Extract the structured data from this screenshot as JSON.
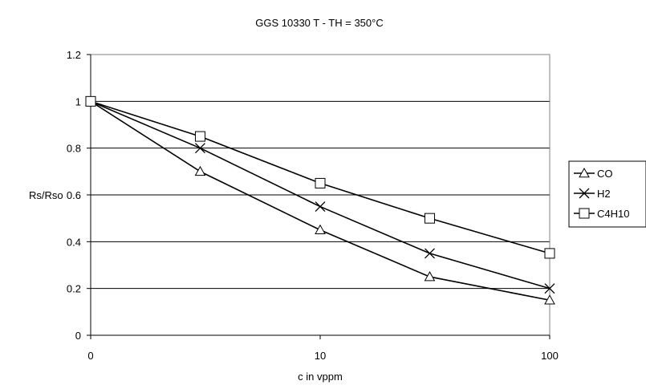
{
  "chart_data": {
    "type": "line",
    "title": "GGS 10330 T - TH = 350°C",
    "xlabel": "c in vppm",
    "ylabel": "Rs/Rso",
    "x_tick_labels": [
      "0",
      "10",
      "100"
    ],
    "x": [
      "0",
      "3",
      "10",
      "30",
      "100"
    ],
    "ylim": [
      0,
      1.2
    ],
    "y_ticks": [
      "0",
      "0.2",
      "0.4",
      "0.6",
      "0.8",
      "1",
      "1.2"
    ],
    "grid": "horizontal",
    "legend_position": "right",
    "series": [
      {
        "name": "CO",
        "marker": "triangle",
        "values": [
          1.0,
          0.7,
          0.45,
          0.25,
          0.15
        ]
      },
      {
        "name": "H2",
        "marker": "x",
        "values": [
          1.0,
          0.8,
          0.55,
          0.35,
          0.2
        ]
      },
      {
        "name": "C4H10",
        "marker": "square",
        "values": [
          1.0,
          0.85,
          0.65,
          0.5,
          0.35
        ]
      }
    ]
  }
}
